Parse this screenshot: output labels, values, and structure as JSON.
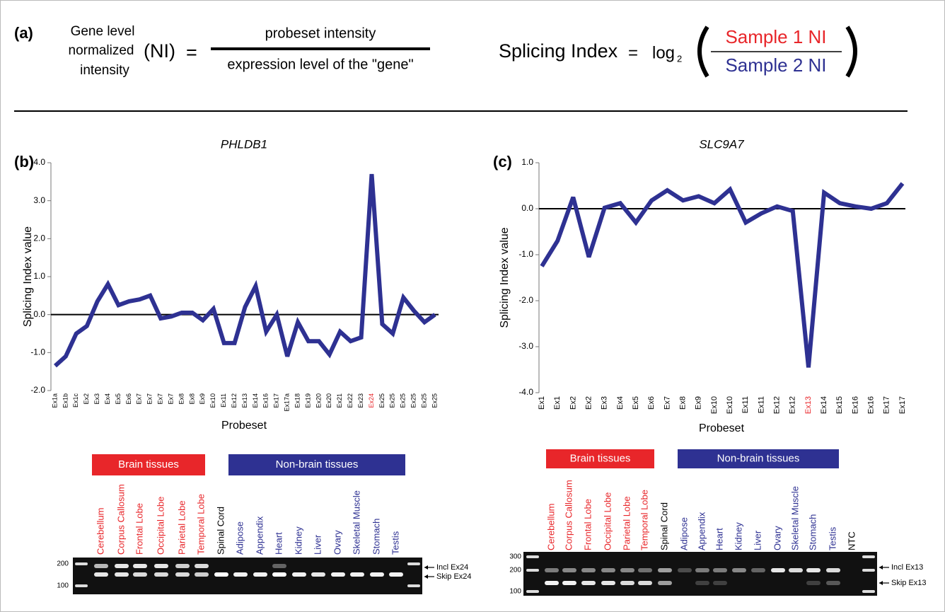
{
  "panel_labels": [
    "(a)",
    "(b)",
    "(c)"
  ],
  "formula": {
    "ni_label": [
      "Gene level",
      "normalized",
      "intensity"
    ],
    "ni_symbol": "(NI)",
    "equals": "=",
    "numerator": "probeset intensity",
    "denominator": "expression level of the \"gene\"",
    "si_label": "Splicing Index",
    "log": "log",
    "log_base": "2",
    "si_numerator": "Sample 1 NI",
    "si_denominator": "Sample 2 NI",
    "numerator_color": "#e8262a",
    "denominator_color": "#2e3192"
  },
  "chart_data": [
    {
      "type": "line",
      "title": "PHLDB1",
      "y_label": "Splicing Index value",
      "x_label": "Probeset",
      "categories": [
        "Ex1a",
        "Ex1b",
        "Ex1c",
        "Ex2",
        "Ex3",
        "Ex4",
        "Ex5",
        "Ex6",
        "Ex7",
        "Ex7",
        "Ex7",
        "Ex7",
        "Ex8",
        "Ex8",
        "Ex9",
        "Ex10",
        "Ex11",
        "Ex12",
        "Ex13",
        "Ex14",
        "Ex16",
        "Ex17",
        "Ex17a",
        "Ex18",
        "Ex19",
        "Ex20",
        "Ex20",
        "Ex21",
        "Ex22",
        "Ex23",
        "Ex24",
        "Ex25",
        "Ex25",
        "Ex25",
        "Ex25",
        "Ex25",
        "Ex25"
      ],
      "values": [
        -1.35,
        -1.1,
        -0.5,
        -0.3,
        0.35,
        0.8,
        0.25,
        0.35,
        0.4,
        0.5,
        -0.1,
        -0.05,
        0.05,
        0.05,
        -0.15,
        0.15,
        -0.75,
        -0.75,
        0.2,
        0.75,
        -0.45,
        0.0,
        -1.1,
        -0.2,
        -0.7,
        -0.7,
        -1.05,
        -0.45,
        -0.7,
        -0.6,
        3.7,
        -0.25,
        -0.5,
        0.45,
        0.1,
        -0.2,
        0.0
      ],
      "color": "#2e3192",
      "highlight_categories": [
        30
      ],
      "highlight_color": "#e8262a",
      "ylim": [
        -2,
        4
      ],
      "yticks": [
        {
          "value": -2,
          "label": "-2.0"
        },
        {
          "value": -1,
          "label": "-1.0"
        },
        {
          "value": 0,
          "label": "0.0"
        },
        {
          "value": 1,
          "label": "1.0"
        },
        {
          "value": 2,
          "label": "2.0"
        },
        {
          "value": 3,
          "label": "3.0"
        },
        {
          "value": 4,
          "label": "4.0"
        }
      ],
      "zero_line": true
    },
    {
      "type": "line",
      "title": "SLC9A7",
      "y_label": "Splicing Index value",
      "x_label": "Probeset",
      "categories": [
        "Ex1",
        "Ex1",
        "Ex2",
        "Ex2",
        "Ex3",
        "Ex4",
        "Ex5",
        "Ex6",
        "Ex7",
        "Ex8",
        "Ex9",
        "Ex10",
        "Ex10",
        "Ex11",
        "Ex11",
        "Ex12",
        "Ex12",
        "Ex13",
        "Ex14",
        "Ex15",
        "Ex16",
        "Ex16",
        "Ex17",
        "Ex17"
      ],
      "values": [
        -1.25,
        -0.7,
        0.25,
        -1.05,
        0.02,
        0.12,
        -0.3,
        0.18,
        0.4,
        0.18,
        0.27,
        0.12,
        0.42,
        -0.3,
        -0.1,
        0.05,
        -0.05,
        -3.45,
        0.35,
        0.12,
        0.05,
        0.0,
        0.12,
        0.55
      ],
      "color": "#2e3192",
      "highlight_categories": [
        17
      ],
      "highlight_color": "#e8262a",
      "ylim": [
        -4,
        1
      ],
      "yticks": [
        {
          "value": -4,
          "label": "-4.0"
        },
        {
          "value": -3,
          "label": "-3.0"
        },
        {
          "value": -2,
          "label": "-2.0"
        },
        {
          "value": -1,
          "label": "-1.0"
        },
        {
          "value": 0,
          "label": "0.0"
        },
        {
          "value": 1,
          "label": "1.0"
        }
      ],
      "zero_line": true
    }
  ],
  "gels": [
    {
      "groups": [
        {
          "label": "Brain tissues",
          "color": "#e8262a"
        },
        {
          "label": "Non-brain tissues",
          "color": "#2e3192"
        }
      ],
      "lanes": [
        {
          "label": "Cerebellum",
          "color": "#e8262a"
        },
        {
          "label": "Corpus Callosum",
          "color": "#e8262a"
        },
        {
          "label": "Frontal Lobe",
          "color": "#e8262a"
        },
        {
          "label": "Occipital Lobe",
          "color": "#e8262a"
        },
        {
          "label": "Parietal Lobe",
          "color": "#e8262a"
        },
        {
          "label": "Temporal Lobe",
          "color": "#e8262a"
        },
        {
          "label": "Spinal Cord",
          "color": "#000000"
        },
        {
          "label": "Adipose",
          "color": "#2e3192"
        },
        {
          "label": "Appendix",
          "color": "#2e3192"
        },
        {
          "label": "Heart",
          "color": "#2e3192"
        },
        {
          "label": "Kidney",
          "color": "#2e3192"
        },
        {
          "label": "Liver",
          "color": "#2e3192"
        },
        {
          "label": "Ovary",
          "color": "#2e3192"
        },
        {
          "label": "Skeletal Muscle",
          "color": "#2e3192"
        },
        {
          "label": "Stomach",
          "color": "#2e3192"
        },
        {
          "label": "Testis",
          "color": "#2e3192"
        }
      ],
      "size_markers": [
        200,
        100
      ],
      "bands": [
        "Incl Ex24",
        "Skip Ex24"
      ]
    },
    {
      "groups": [
        {
          "label": "Brain tissues",
          "color": "#e8262a"
        },
        {
          "label": "Non-brain tissues",
          "color": "#2e3192"
        }
      ],
      "lanes": [
        {
          "label": "Cerebellum",
          "color": "#e8262a"
        },
        {
          "label": "Corpus Callosum",
          "color": "#e8262a"
        },
        {
          "label": "Frontal Lobe",
          "color": "#e8262a"
        },
        {
          "label": "Occipital Lobe",
          "color": "#e8262a"
        },
        {
          "label": "Parietal Lobe",
          "color": "#e8262a"
        },
        {
          "label": "Temporal Lobe",
          "color": "#e8262a"
        },
        {
          "label": "Spinal Cord",
          "color": "#000000"
        },
        {
          "label": "Adipose",
          "color": "#2e3192"
        },
        {
          "label": "Appendix",
          "color": "#2e3192"
        },
        {
          "label": "Heart",
          "color": "#2e3192"
        },
        {
          "label": "Kidney",
          "color": "#2e3192"
        },
        {
          "label": "Liver",
          "color": "#2e3192"
        },
        {
          "label": "Ovary",
          "color": "#2e3192"
        },
        {
          "label": "Skeletal Muscle",
          "color": "#2e3192"
        },
        {
          "label": "Stomach",
          "color": "#2e3192"
        },
        {
          "label": "Testis",
          "color": "#2e3192"
        },
        {
          "label": "NTC",
          "color": "#000000"
        }
      ],
      "size_markers": [
        300,
        200,
        100
      ],
      "bands": [
        "Incl Ex13",
        "Skip Ex13"
      ]
    }
  ]
}
